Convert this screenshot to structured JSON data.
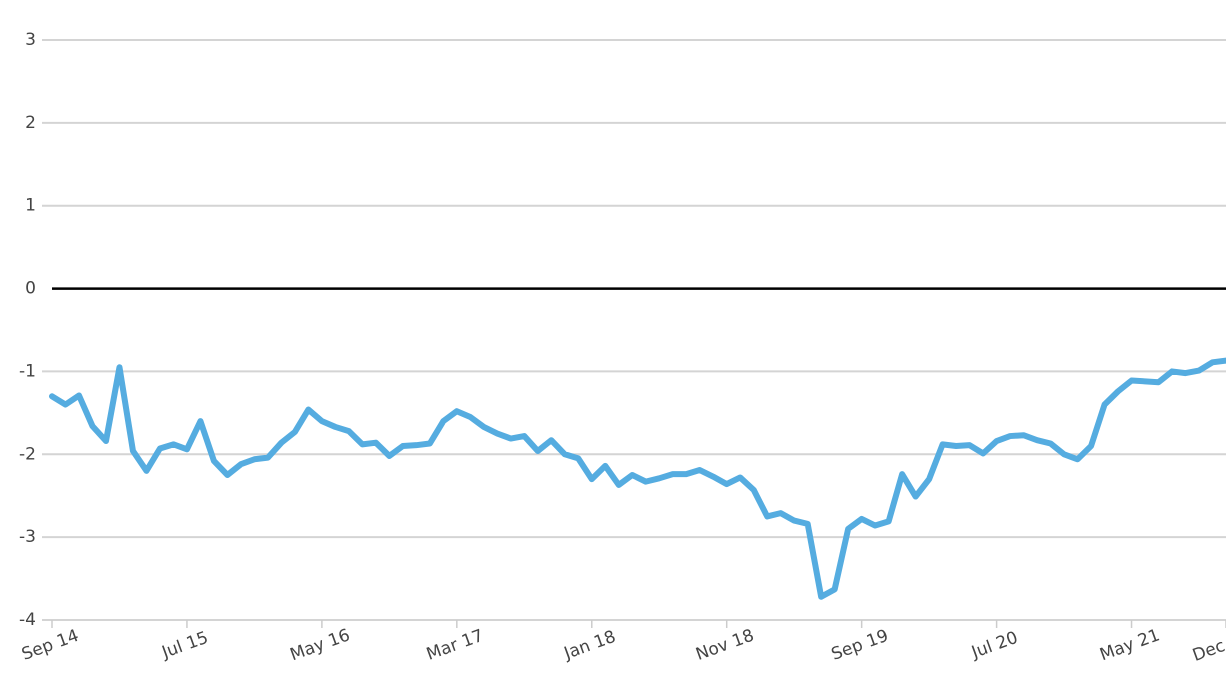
{
  "chart_data": {
    "type": "line",
    "categories": [
      "Sep 14",
      null,
      null,
      null,
      null,
      null,
      null,
      null,
      null,
      null,
      "Jul 15",
      null,
      null,
      null,
      null,
      null,
      null,
      null,
      null,
      null,
      "May 16",
      null,
      null,
      null,
      null,
      null,
      null,
      null,
      null,
      null,
      "Mar 17",
      null,
      null,
      null,
      null,
      null,
      null,
      null,
      null,
      null,
      "Jan 18",
      null,
      null,
      null,
      null,
      null,
      null,
      null,
      null,
      null,
      "Nov 18",
      null,
      null,
      null,
      null,
      null,
      null,
      null,
      null,
      null,
      "Sep 19",
      null,
      null,
      null,
      null,
      null,
      null,
      null,
      null,
      null,
      "Jul 20",
      null,
      null,
      null,
      null,
      null,
      null,
      null,
      null,
      null,
      "May 21",
      null,
      null,
      null,
      null,
      null,
      null,
      "Dec"
    ],
    "values": [
      -1.3,
      -1.4,
      -1.29,
      -1.66,
      -1.84,
      -0.95,
      -1.96,
      -2.2,
      -1.93,
      -1.88,
      -1.94,
      -1.6,
      -2.08,
      -2.25,
      -2.12,
      -2.06,
      -2.04,
      -1.86,
      -1.73,
      -1.46,
      -1.6,
      -1.67,
      -1.72,
      -1.88,
      -1.86,
      -2.02,
      -1.9,
      -1.89,
      -1.87,
      -1.6,
      -1.48,
      -1.55,
      -1.67,
      -1.75,
      -1.81,
      -1.78,
      -1.96,
      -1.83,
      -2.0,
      -2.05,
      -2.3,
      -2.14,
      -2.37,
      -2.25,
      -2.33,
      -2.29,
      -2.24,
      -2.24,
      -2.19,
      -2.27,
      -2.36,
      -2.28,
      -2.43,
      -2.75,
      -2.71,
      -2.8,
      -2.84,
      -3.72,
      -3.63,
      -2.9,
      -2.78,
      -2.86,
      -2.81,
      -2.24,
      -2.51,
      -2.3,
      -1.88,
      -1.9,
      -1.89,
      -1.99,
      -1.84,
      -1.78,
      -1.77,
      -1.83,
      -1.87,
      -2.0,
      -2.06,
      -1.9,
      -1.4,
      -1.24,
      -1.11,
      -1.12,
      -1.13,
      -1.0,
      -1.02,
      -0.99,
      -0.89,
      -0.87
    ],
    "color": "#55ace0",
    "ylim": [
      -4,
      3
    ],
    "yticks": [
      -4,
      -3,
      -2,
      -1,
      0,
      1,
      2,
      3
    ],
    "grid": true,
    "zero_line": true
  }
}
